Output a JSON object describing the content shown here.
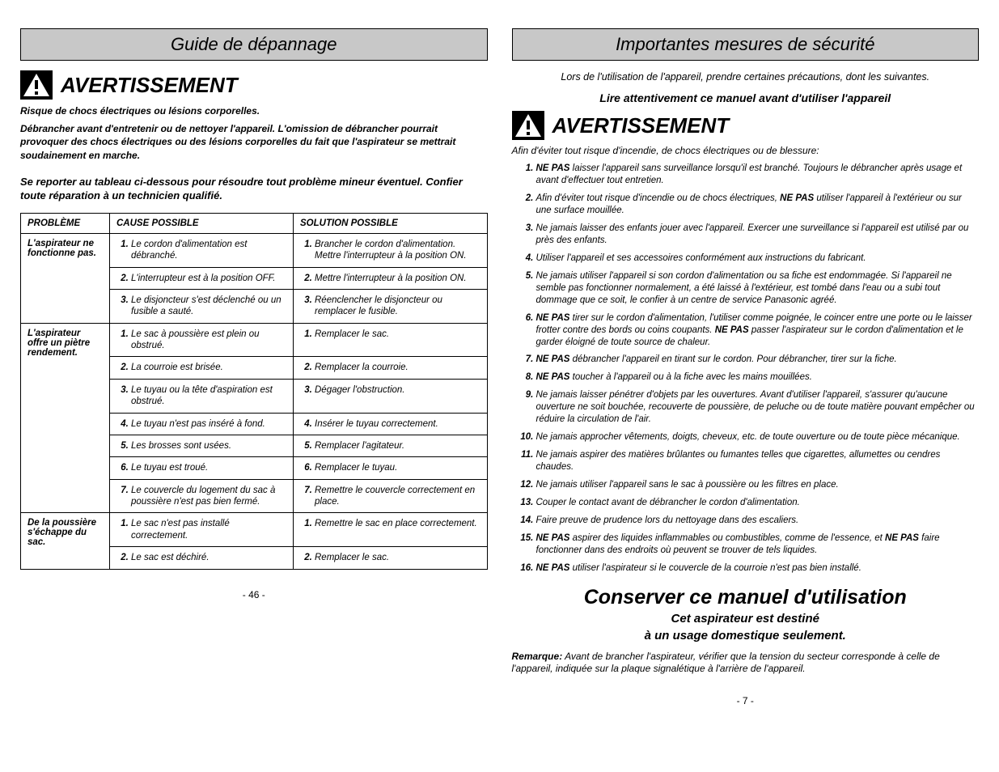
{
  "left": {
    "title": "Guide de dépannage",
    "warning_label": "AVERTISSEMENT",
    "warn_line1": "Risque de chocs électriques ou lésions corporelles.",
    "warn_line2": "Débrancher avant d'entretenir ou de nettoyer l'appareil. L'omission de débrancher pourrait provoquer des chocs électriques ou des lésions corporelles du fait que l'aspirateur se mettrait soudainement en marche.",
    "intro": "Se reporter au tableau ci-dessous pour résoudre tout problème mineur éventuel.  Confier toute réparation à un technicien qualifié.",
    "table": {
      "headers": [
        "PROBLÈME",
        "CAUSE POSSIBLE",
        "SOLUTION POSSIBLE"
      ],
      "rows": [
        {
          "problem": "L'aspirateur ne fonctionne pas.",
          "causes": [
            "Le cordon d'alimentation est débranché.",
            "L'interrupteur est à la position OFF.",
            "Le disjoncteur s'est déclenché ou un fusible a sauté."
          ],
          "solutions": [
            "Brancher le cordon d'alimentation. Mettre l'interrupteur à la position ON.",
            "Mettre l'interrupteur à la position ON.",
            "Réenclencher le disjoncteur ou remplacer le fusible."
          ]
        },
        {
          "problem": "L'aspirateur offre un piètre rendement.",
          "causes": [
            "Le sac à poussière est plein ou obstrué.",
            "La courroie est brisée.",
            "Le tuyau ou la tête d'aspiration est obstrué.",
            "Le tuyau n'est pas inséré à fond.",
            "Les brosses sont usées.",
            "Le tuyau est troué.",
            "Le couvercle du logement du sac à poussière n'est pas bien fermé."
          ],
          "solutions": [
            "Remplacer le sac.",
            "Remplacer la courroie.",
            "Dégager l'obstruction.",
            "Insérer le tuyau correctement.",
            "Remplacer l'agitateur.",
            "Remplacer le tuyau.",
            "Remettre le couvercle correctement en place."
          ]
        },
        {
          "problem": "De la poussière s'échappe du sac.",
          "causes": [
            "Le sac n'est pas installé correctement.",
            "Le sac est déchiré."
          ],
          "solutions": [
            "Remettre le sac en place correctement.",
            "Remplacer le sac."
          ]
        }
      ]
    },
    "page_number": "- 46 -"
  },
  "right": {
    "title": "Importantes mesures de sécurité",
    "intro": "Lors de l'utilisation de l'appareil, prendre certaines précautions, dont les suivantes.",
    "sub": "Lire attentivement ce manuel avant d'utiliser l'appareil",
    "warning_label": "AVERTISSEMENT",
    "lead": "Afin d'éviter tout risque d'incendie, de chocs électriques ou de blessure:",
    "items": [
      "<b>NE PAS</b> laisser l'appareil sans surveillance lorsqu'il est branché. Toujours le débrancher après usage et avant d'effectuer tout entretien.",
      "Afin d'éviter tout risque d'incendie ou de chocs électriques, <b>NE PAS</b> utiliser l'appareil à l'extérieur ou sur une surface mouillée.",
      "Ne jamais laisser des enfants jouer avec l'appareil. Exercer une surveillance si l'appareil est utilisé par ou près des enfants.",
      "Utiliser l'appareil et ses accessoires conformément aux instructions du fabricant.",
      "Ne jamais utiliser l'appareil si son cordon d'alimentation ou sa fiche est endommagée. Si l'appareil ne semble pas fonctionner normalement, a été laissé à l'extérieur, est tombé dans l'eau ou a subi tout dommage que ce soit, le confier à un centre de service Panasonic agréé.",
      "<b>NE PAS</b> tirer sur le cordon d'alimentation, l'utiliser comme poignée, le coincer entre une porte ou le laisser frotter contre des bords ou coins coupants. <b>NE PAS</b> passer l'aspirateur sur le cordon d'alimentation et le garder éloigné de toute source de chaleur.",
      "<b>NE PAS</b> débrancher l'appareil en tirant sur le cordon. Pour débrancher, tirer sur la fiche.",
      "<b>NE PAS</b> toucher à l'appareil ou à la fiche avec les mains mouillées.",
      "Ne jamais laisser pénétrer d'objets par les ouvertures. Avant d'utiliser l'appareil, s'assurer qu'aucune ouverture ne soit bouchée, recouverte de poussière, de peluche ou de toute matière pouvant empêcher ou réduire la circulation de l'air.",
      "Ne jamais approcher vêtements, doigts, cheveux, etc. de toute ouverture ou de toute pièce mécanique.",
      "Ne jamais aspirer des matières brûlantes ou fumantes telles que cigarettes, allumettes ou cendres chaudes.",
      "Ne jamais utiliser l'appareil sans le sac à poussière ou les filtres en place.",
      "Couper le contact avant de débrancher le cordon d'alimentation.",
      "Faire preuve de prudence lors du nettoyage dans des escaliers.",
      "<b>NE PAS</b> aspirer des liquides inflammables ou combustibles, comme de l'essence, et <b>NE PAS</b> faire fonctionner dans des endroits où peuvent se trouver de tels liquides.",
      "<b>NE PAS</b> utiliser l'aspirateur si le couvercle de la courroie n'est pas bien installé."
    ],
    "keep_title": "Conserver ce manuel d'utilisation",
    "keep_sub1": "Cet aspirateur est destiné",
    "keep_sub2": "à un usage domestique seulement.",
    "remark_label": "Remarque:",
    "remark_text": "Avant de brancher l'aspirateur, vérifier que la tension du secteur corresponde à celle de l'appareil, indiquée sur la plaque signalétique à l'arrière de l'appareil.",
    "page_number": "- 7 -"
  }
}
